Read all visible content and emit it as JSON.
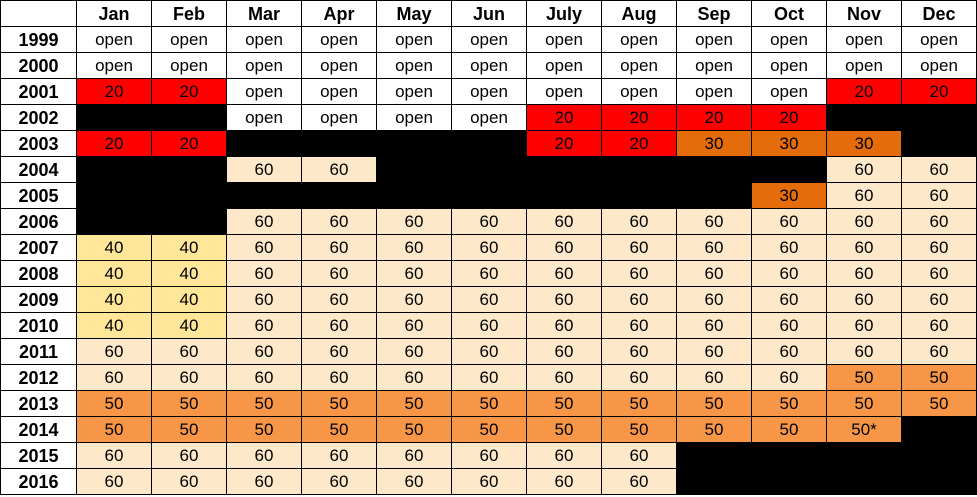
{
  "chart_data": {
    "type": "table",
    "months": [
      "Jan",
      "Feb",
      "Mar",
      "Apr",
      "May",
      "Jun",
      "July",
      "Aug",
      "Sep",
      "Oct",
      "Nov",
      "Dec"
    ],
    "rows": [
      {
        "year": "1999",
        "cells": [
          "open",
          "open",
          "open",
          "open",
          "open",
          "open",
          "open",
          "open",
          "open",
          "open",
          "open",
          "open"
        ]
      },
      {
        "year": "2000",
        "cells": [
          "open",
          "open",
          "open",
          "open",
          "open",
          "open",
          "open",
          "open",
          "open",
          "open",
          "open",
          "open"
        ]
      },
      {
        "year": "2001",
        "cells": [
          "20",
          "20",
          "open",
          "open",
          "open",
          "open",
          "open",
          "open",
          "open",
          "open",
          "20",
          "20"
        ]
      },
      {
        "year": "2002",
        "cells": [
          "",
          "",
          "open",
          "open",
          "open",
          "open",
          "20",
          "20",
          "20",
          "20",
          "",
          ""
        ]
      },
      {
        "year": "2003",
        "cells": [
          "20",
          "20",
          "",
          "",
          "",
          "",
          "20",
          "20",
          "30",
          "30",
          "30",
          ""
        ]
      },
      {
        "year": "2004",
        "cells": [
          "",
          "",
          "60",
          "60",
          "",
          "",
          "",
          "",
          "",
          "",
          "60",
          "60"
        ]
      },
      {
        "year": "2005",
        "cells": [
          "",
          "",
          "",
          "",
          "",
          "",
          "",
          "",
          "",
          "30",
          "60",
          "60"
        ]
      },
      {
        "year": "2006",
        "cells": [
          "",
          "",
          "60",
          "60",
          "60",
          "60",
          "60",
          "60",
          "60",
          "60",
          "60",
          "60"
        ]
      },
      {
        "year": "2007",
        "cells": [
          "40",
          "40",
          "60",
          "60",
          "60",
          "60",
          "60",
          "60",
          "60",
          "60",
          "60",
          "60"
        ]
      },
      {
        "year": "2008",
        "cells": [
          "40",
          "40",
          "60",
          "60",
          "60",
          "60",
          "60",
          "60",
          "60",
          "60",
          "60",
          "60"
        ]
      },
      {
        "year": "2009",
        "cells": [
          "40",
          "40",
          "60",
          "60",
          "60",
          "60",
          "60",
          "60",
          "60",
          "60",
          "60",
          "60"
        ]
      },
      {
        "year": "2010",
        "cells": [
          "40",
          "40",
          "60",
          "60",
          "60",
          "60",
          "60",
          "60",
          "60",
          "60",
          "60",
          "60"
        ]
      },
      {
        "year": "2011",
        "cells": [
          "60",
          "60",
          "60",
          "60",
          "60",
          "60",
          "60",
          "60",
          "60",
          "60",
          "60",
          "60"
        ]
      },
      {
        "year": "2012",
        "cells": [
          "60",
          "60",
          "60",
          "60",
          "60",
          "60",
          "60",
          "60",
          "60",
          "60",
          "50",
          "50"
        ]
      },
      {
        "year": "2013",
        "cells": [
          "50",
          "50",
          "50",
          "50",
          "50",
          "50",
          "50",
          "50",
          "50",
          "50",
          "50",
          "50"
        ]
      },
      {
        "year": "2014",
        "cells": [
          "50",
          "50",
          "50",
          "50",
          "50",
          "50",
          "50",
          "50",
          "50",
          "50",
          "50*",
          ""
        ]
      },
      {
        "year": "2015",
        "cells": [
          "60",
          "60",
          "60",
          "60",
          "60",
          "60",
          "60",
          "60",
          "",
          "",
          "",
          ""
        ]
      },
      {
        "year": "2016",
        "cells": [
          "60",
          "60",
          "60",
          "60",
          "60",
          "60",
          "60",
          "60",
          "",
          "",
          "",
          ""
        ]
      }
    ],
    "colors": {
      "open": "#ffffff",
      "20": "#ff0000",
      "30": "#e46c0a",
      "40": "#ffe699",
      "50": "#f79646",
      "50*": "#f79646",
      "60": "#fde9c9",
      "": "#000000"
    }
  }
}
